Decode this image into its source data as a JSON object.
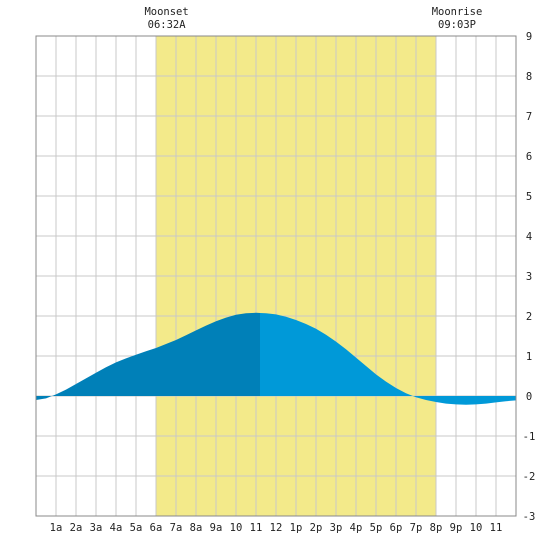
{
  "chart_data": {
    "type": "area",
    "title": "",
    "xlabel": "",
    "ylabel": "",
    "x_range_hours": [
      0,
      24
    ],
    "ylim": [
      -3,
      9
    ],
    "yticks": [
      -3,
      -2,
      -1,
      0,
      1,
      2,
      3,
      4,
      5,
      6,
      7,
      8,
      9
    ],
    "xtick_labels": [
      "1a",
      "2a",
      "3a",
      "4a",
      "5a",
      "6a",
      "7a",
      "8a",
      "9a",
      "10",
      "11",
      "12",
      "1p",
      "2p",
      "3p",
      "4p",
      "5p",
      "6p",
      "7p",
      "8p",
      "9p",
      "10",
      "11"
    ],
    "grid": true,
    "daylight_band": {
      "start_hour": 6,
      "end_hour": 20,
      "color": "#f3ea8a"
    },
    "moon_events": [
      {
        "label": "Moonset",
        "time": "06:32A",
        "hour": 6.53
      },
      {
        "label": "Moonrise",
        "time": "09:03P",
        "hour": 21.05
      }
    ],
    "tide_extremes": [
      {
        "type": "low",
        "hour": 0.4,
        "height": -0.08
      },
      {
        "type": "high",
        "hour": 11.2,
        "height": 2.08
      },
      {
        "type": "low",
        "hour": 22.2,
        "height": -0.22
      }
    ],
    "series": [
      {
        "x": [
          0,
          0.5,
          1,
          1.5,
          2,
          2.5,
          3,
          3.5,
          4,
          4.5,
          5,
          5.5,
          6,
          6.5,
          7,
          7.5,
          8,
          8.5,
          9,
          9.5,
          10,
          10.5,
          11,
          11.5,
          12,
          12.5,
          13,
          13.5,
          14,
          14.5,
          15,
          15.5,
          16,
          16.5,
          17,
          17.5,
          18,
          18.5,
          19,
          19.5,
          20,
          20.5,
          21,
          21.5,
          22,
          22.5,
          23,
          23.5,
          24
        ],
        "values": [
          -0.1,
          -0.06,
          0.04,
          0.16,
          0.3,
          0.44,
          0.58,
          0.72,
          0.84,
          0.94,
          1.03,
          1.12,
          1.2,
          1.3,
          1.4,
          1.52,
          1.64,
          1.76,
          1.87,
          1.96,
          2.03,
          2.07,
          2.08,
          2.07,
          2.04,
          1.98,
          1.9,
          1.8,
          1.68,
          1.53,
          1.36,
          1.17,
          0.96,
          0.75,
          0.54,
          0.36,
          0.2,
          0.07,
          -0.03,
          -0.1,
          -0.15,
          -0.19,
          -0.21,
          -0.22,
          -0.21,
          -0.19,
          -0.16,
          -0.13,
          -0.11
        ]
      }
    ],
    "colors": {
      "tide_rising": "#0080b8",
      "tide_falling": "#0099d8",
      "grid": "#c8c8c8",
      "frame": "#888888"
    }
  }
}
